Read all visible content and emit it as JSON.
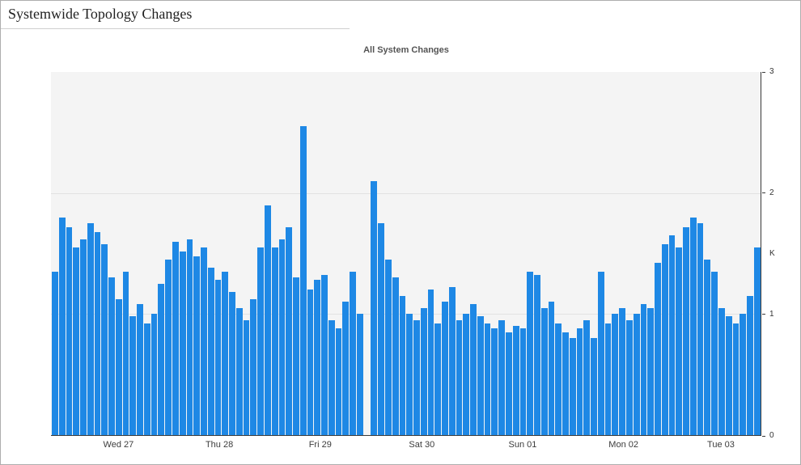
{
  "page": {
    "title": "Systemwide Topology Changes"
  },
  "chart_data": {
    "type": "bar",
    "title": "All System Changes",
    "xlabel": "",
    "ylabel": "",
    "unit_label": "K",
    "ylim": [
      0,
      3
    ],
    "yticks": [
      0,
      1,
      2,
      3
    ],
    "grid_values": [
      1,
      2
    ],
    "grid": "horizontal",
    "legend": "none",
    "bar_color": "#1e88e5",
    "plot_bg": "#f4f4f4",
    "x_tick_labels": [
      "Wed 27",
      "Thu 28",
      "Fri 29",
      "Sat 30",
      "Sun 01",
      "Mon 02",
      "Tue 03"
    ],
    "x_tick_positions_pct": [
      9.5,
      23.7,
      37.9,
      52.2,
      66.4,
      80.6,
      94.3
    ],
    "values_k": [
      1.35,
      1.8,
      1.72,
      1.55,
      1.62,
      1.75,
      1.68,
      1.58,
      1.3,
      1.12,
      1.35,
      0.98,
      1.08,
      0.92,
      1.0,
      1.25,
      1.45,
      1.6,
      1.52,
      1.62,
      1.48,
      1.55,
      1.38,
      1.28,
      1.35,
      1.18,
      1.05,
      0.95,
      1.12,
      1.55,
      1.9,
      1.55,
      1.62,
      1.72,
      1.3,
      2.55,
      1.2,
      1.28,
      1.32,
      0.95,
      0.88,
      1.1,
      1.35,
      1.0,
      0.0,
      2.1,
      1.75,
      1.45,
      1.3,
      1.15,
      1.0,
      0.95,
      1.05,
      1.2,
      0.92,
      1.1,
      1.22,
      0.95,
      1.0,
      1.08,
      0.98,
      0.92,
      0.88,
      0.95,
      0.85,
      0.9,
      0.88,
      1.35,
      1.32,
      1.05,
      1.1,
      0.92,
      0.85,
      0.8,
      0.88,
      0.95,
      0.8,
      1.35,
      0.92,
      1.0,
      1.05,
      0.95,
      1.0,
      1.08,
      1.05,
      1.42,
      1.58,
      1.65,
      1.55,
      1.72,
      1.8,
      1.75,
      1.45,
      1.35,
      1.05,
      0.98,
      0.92,
      1.0,
      1.15,
      1.55
    ]
  }
}
